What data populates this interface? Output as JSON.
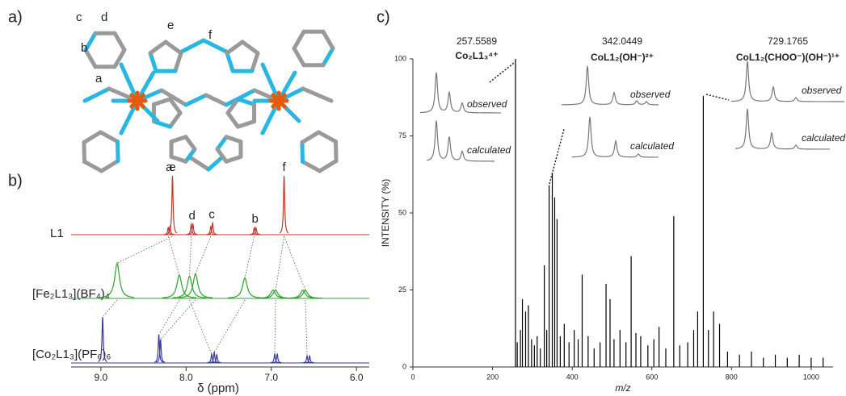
{
  "panel_labels": [
    "a)",
    "b)",
    "c)"
  ],
  "structure": {
    "labels": [
      "a",
      "b",
      "c",
      "d",
      "e",
      "f"
    ]
  },
  "chart_data": [
    {
      "type": "nmr",
      "xlabel": "δ (ppm)",
      "xlim": [
        9.35,
        5.85
      ],
      "xticks": [
        {
          "value": 9,
          "label": "9.0"
        },
        {
          "value": 8,
          "label": "8.0"
        },
        {
          "value": 7,
          "label": "7.0"
        },
        {
          "value": 6,
          "label": "6.0"
        }
      ],
      "series": [
        {
          "name": "L1",
          "color": "#c0392b",
          "x": [
            8.21,
            8.19,
            8.16,
            7.94,
            7.92,
            7.71,
            7.69,
            7.2,
            7.18,
            6.85
          ],
          "values": [
            12,
            14,
            100,
            18,
            18,
            14,
            20,
            12,
            12,
            100
          ]
        },
        {
          "name": "[Fe₂L1₃](BF₄)₄",
          "color": "#2ca02c",
          "x": [
            8.81,
            8.08,
            7.96,
            7.89,
            7.31,
            6.98,
            6.95,
            6.63,
            6.6
          ],
          "values": [
            60,
            40,
            38,
            42,
            35,
            14,
            14,
            14,
            14
          ]
        },
        {
          "name": "[Co₂L1₃](PF₆)₆",
          "color": "#3a3a9a",
          "x": [
            8.98,
            8.32,
            8.3,
            7.7,
            7.67,
            7.64,
            6.96,
            6.93,
            6.58,
            6.55
          ],
          "values": [
            78,
            48,
            40,
            15,
            18,
            14,
            15,
            15,
            12,
            12
          ]
        }
      ],
      "peak_labels": {
        "labels": [
          "a",
          "e",
          "d",
          "c",
          "b",
          "f"
        ],
        "x": [
          8.2,
          8.16,
          7.93,
          7.7,
          7.19,
          6.85
        ]
      }
    },
    {
      "type": "stem",
      "xlabel": "m/z",
      "ylabel": "INTENSITY (%)",
      "color": "#000000",
      "xlim": [
        0,
        1055
      ],
      "ylim": [
        0,
        100
      ],
      "xticks": [
        0,
        200,
        400,
        600,
        800,
        1000
      ],
      "yticks": [
        0,
        25,
        50,
        75,
        100
      ],
      "x": [
        257.56,
        262,
        270,
        275,
        283,
        290,
        298,
        305,
        312,
        320,
        330,
        336,
        342.04,
        350,
        356,
        362,
        370,
        380,
        392,
        405,
        415,
        425,
        440,
        455,
        470,
        485,
        495,
        505,
        520,
        535,
        548,
        560,
        572,
        590,
        605,
        618,
        635,
        655,
        670,
        690,
        705,
        715,
        729.18,
        742,
        755,
        770,
        790,
        820,
        850,
        880,
        910,
        940,
        970,
        1000,
        1030
      ],
      "values": [
        100,
        8,
        12,
        22,
        18,
        20,
        9,
        7,
        10,
        6,
        33,
        12,
        59,
        63,
        55,
        48,
        10,
        14,
        8,
        12,
        9,
        30,
        10,
        6,
        8,
        27,
        22,
        9,
        12,
        8,
        36,
        11,
        10,
        7,
        9,
        13,
        6,
        49,
        7,
        8,
        12,
        18,
        88,
        12,
        18,
        14,
        5,
        4,
        5,
        3,
        4,
        3,
        4,
        3,
        3
      ],
      "insets": [
        {
          "mz": "257.5589",
          "formula": "Co₂L1₃⁴⁺",
          "observed": "observed",
          "calculated": "calculated"
        },
        {
          "mz": "342.0449",
          "formula": "CoL1₂(OH⁻)²⁺",
          "observed": "observed",
          "calculated": "calculated"
        },
        {
          "mz": "729.1765",
          "formula": "CoL1₂(CHOO⁻)(OH⁻)¹⁺",
          "observed": "observed",
          "calculated": "calculated"
        }
      ]
    }
  ]
}
